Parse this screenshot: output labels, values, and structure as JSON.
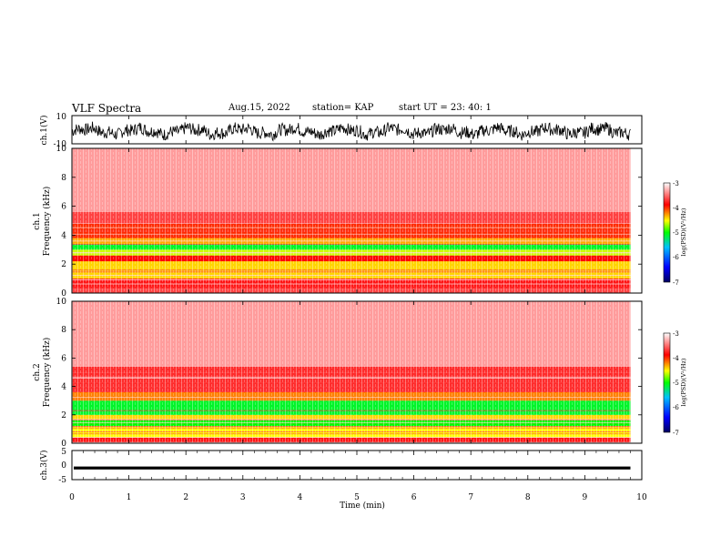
{
  "header": {
    "title": "VLF Spectra",
    "date": "Aug.15, 2022",
    "station": "station= KAP",
    "start": "start  UT  =   23: 40: 1"
  },
  "chart_data": [
    {
      "type": "line",
      "ylabel": "ch.1(V)",
      "ylim": [
        -10,
        10
      ],
      "yticks": [
        "10",
        "-10"
      ],
      "xlim": [
        0,
        10
      ],
      "note_visible": "dense noisy waveform, amplitude about -8 to +6 V, until ~9.8 min"
    },
    {
      "type": "heatmap",
      "ylabel": "ch.1\nFrequency  (kHz)",
      "ylabel_lines": [
        "ch.1",
        "Frequency  (kHz)"
      ],
      "yticks": [
        "0",
        "2",
        "4",
        "6",
        "8",
        "10"
      ],
      "ylim": [
        0,
        10
      ],
      "xlim": [
        0,
        9.8
      ],
      "bands_khz": [
        {
          "from": 0.0,
          "to": 0.3,
          "level": -3.6
        },
        {
          "from": 0.3,
          "to": 1.0,
          "level": -3.8
        },
        {
          "from": 1.0,
          "to": 2.2,
          "level": -4.4
        },
        {
          "from": 2.2,
          "to": 2.6,
          "level": -3.9
        },
        {
          "from": 2.6,
          "to": 3.0,
          "level": -4.6
        },
        {
          "from": 3.0,
          "to": 3.4,
          "level": -5.1
        },
        {
          "from": 3.4,
          "to": 3.8,
          "level": -4.3
        },
        {
          "from": 3.8,
          "to": 4.8,
          "level": -4.0
        },
        {
          "from": 4.8,
          "to": 5.6,
          "level": -3.6
        },
        {
          "from": 5.6,
          "to": 10.0,
          "level": -3.2
        }
      ],
      "colorbar": {
        "label": "log(PSD)(V²/Hz)",
        "ticks": [
          "-3",
          "-4",
          "-5",
          "-6",
          "-7"
        ],
        "range": [
          -7,
          -3
        ]
      }
    },
    {
      "type": "heatmap",
      "ylabel": "ch.2\nFrequency  (kHz)",
      "ylabel_lines": [
        "ch.2",
        "Frequency  (kHz)"
      ],
      "yticks": [
        "0",
        "2",
        "4",
        "6",
        "8",
        "10"
      ],
      "ylim": [
        0,
        10
      ],
      "xlim": [
        0,
        9.8
      ],
      "bands_khz": [
        {
          "from": 0.0,
          "to": 0.4,
          "level": -3.8
        },
        {
          "from": 0.4,
          "to": 1.2,
          "level": -4.5
        },
        {
          "from": 1.2,
          "to": 1.7,
          "level": -5.0
        },
        {
          "from": 1.7,
          "to": 2.0,
          "level": -4.4
        },
        {
          "from": 2.0,
          "to": 3.0,
          "level": -5.1
        },
        {
          "from": 3.0,
          "to": 3.6,
          "level": -4.2
        },
        {
          "from": 3.6,
          "to": 5.4,
          "level": -3.7
        },
        {
          "from": 5.4,
          "to": 10.0,
          "level": -3.2
        }
      ],
      "colorbar": {
        "label": "log(PSD)(V²/Hz)",
        "ticks": [
          "-3",
          "-4",
          "-5",
          "-6",
          "-7"
        ],
        "range": [
          -7,
          -3
        ]
      }
    },
    {
      "type": "line",
      "ylabel": "ch.3(V)",
      "ylim": [
        -5,
        5
      ],
      "yticks": [
        "5",
        "0",
        "-5"
      ],
      "xlim": [
        0,
        10
      ],
      "xlabel": "Time  (min)",
      "xticks": [
        "0",
        "1",
        "2",
        "3",
        "4",
        "5",
        "6",
        "7",
        "8",
        "9",
        "10"
      ],
      "note_visible": "thick black band about -1.5 to -0.5 V until ~9.8 min"
    }
  ],
  "colors": {
    "scale": [
      "#000080",
      "#0000ff",
      "#00a0ff",
      "#00ff00",
      "#ffff00",
      "#ff0000",
      "#ffffff"
    ]
  }
}
